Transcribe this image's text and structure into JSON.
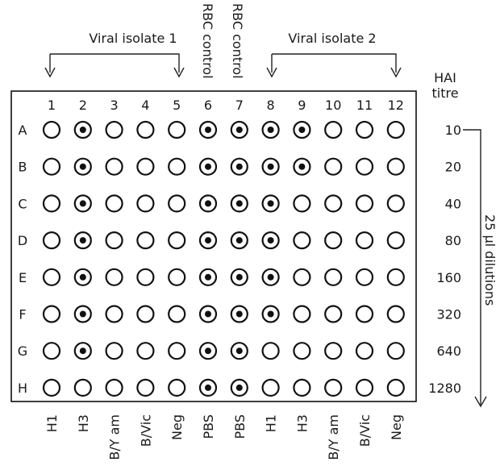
{
  "headers": {
    "isolate1": "Viral isolate 1",
    "isolate2": "Viral isolate 2",
    "rbc_control_a": "RBC control",
    "rbc_control_b": "RBC control",
    "hai_line1": "HAI",
    "hai_line2": "titre",
    "dilutions": "25 µl dilutions"
  },
  "columns": [
    "1",
    "2",
    "3",
    "4",
    "5",
    "6",
    "7",
    "8",
    "9",
    "10",
    "11",
    "12"
  ],
  "rows": [
    "A",
    "B",
    "C",
    "D",
    "E",
    "F",
    "G",
    "H"
  ],
  "titres": [
    "10",
    "20",
    "40",
    "80",
    "160",
    "320",
    "640",
    "1280"
  ],
  "column_labels": [
    "H1",
    "H3",
    "B/Y am",
    "B/Vic",
    "Neg",
    "PBS",
    "PBS",
    "H1",
    "H3",
    "B/Y am",
    "B/Vic",
    "Neg"
  ],
  "wells": [
    [
      0,
      1,
      0,
      0,
      0,
      1,
      1,
      1,
      1,
      0,
      0,
      0
    ],
    [
      0,
      1,
      0,
      0,
      0,
      1,
      1,
      1,
      1,
      0,
      0,
      0
    ],
    [
      0,
      1,
      0,
      0,
      0,
      1,
      1,
      1,
      0,
      0,
      0,
      0
    ],
    [
      0,
      1,
      0,
      0,
      0,
      1,
      1,
      1,
      0,
      0,
      0,
      0
    ],
    [
      0,
      1,
      0,
      0,
      0,
      1,
      1,
      1,
      0,
      0,
      0,
      0
    ],
    [
      0,
      1,
      0,
      0,
      0,
      1,
      1,
      1,
      0,
      0,
      0,
      0
    ],
    [
      0,
      1,
      0,
      0,
      0,
      1,
      1,
      0,
      0,
      0,
      0,
      0
    ],
    [
      0,
      0,
      0,
      0,
      0,
      1,
      1,
      0,
      0,
      0,
      0,
      0
    ]
  ]
}
